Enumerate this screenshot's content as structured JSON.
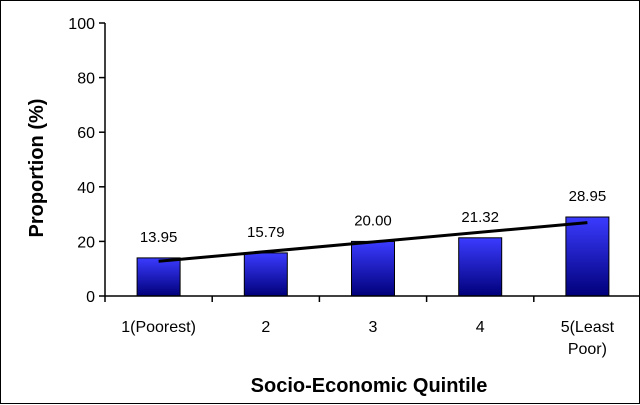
{
  "chart_data": {
    "type": "bar",
    "categories": [
      "1(Poorest)",
      "2",
      "3",
      "4",
      "5(Least Poor)"
    ],
    "values": [
      13.95,
      15.79,
      20.0,
      21.32,
      28.95
    ],
    "data_labels": [
      "13.95",
      "15.79",
      "20.00",
      "21.32",
      "28.95"
    ],
    "xlabel": "Socio-Economic Quintile",
    "ylabel": "Proportion (%)",
    "ylim": [
      0,
      100
    ],
    "yticks": [
      "0",
      "20",
      "40",
      "60",
      "80",
      "100"
    ],
    "grid": false,
    "legend": "none",
    "trendline": {
      "type": "linear",
      "start_value": 12.7,
      "end_value": 26.9
    },
    "colors": {
      "bar_top": "#3b3bff",
      "bar_bottom": "#00007a",
      "bar_edge": "#000000",
      "trendline": "#000000",
      "axis": "#000000"
    }
  }
}
